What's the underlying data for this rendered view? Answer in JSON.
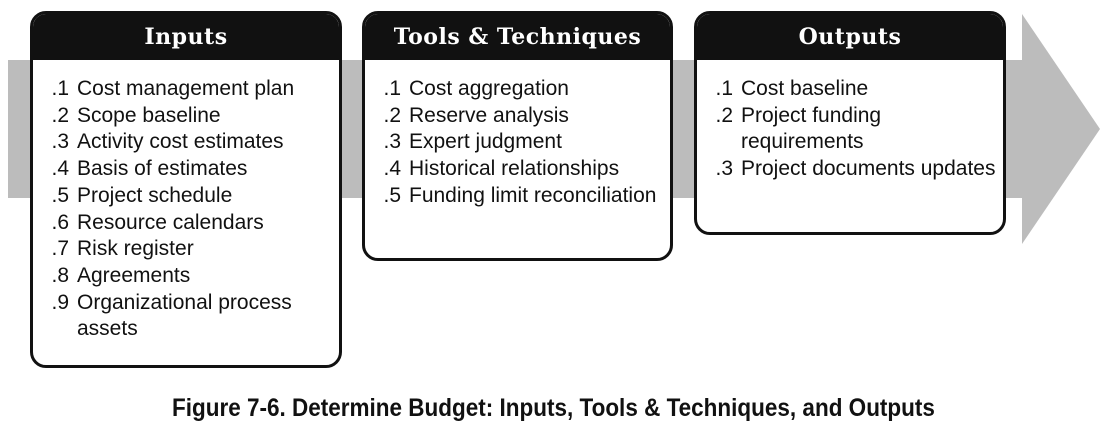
{
  "diagram": {
    "inputs": {
      "title": "Inputs",
      "items": [
        {
          "num": ".1",
          "text": "Cost management plan"
        },
        {
          "num": ".2",
          "text": "Scope baseline"
        },
        {
          "num": ".3",
          "text": "Activity cost estimates"
        },
        {
          "num": ".4",
          "text": "Basis of estimates"
        },
        {
          "num": ".5",
          "text": "Project schedule"
        },
        {
          "num": ".6",
          "text": "Resource calendars"
        },
        {
          "num": ".7",
          "text": "Risk register"
        },
        {
          "num": ".8",
          "text": "Agreements"
        },
        {
          "num": ".9",
          "text": "Organizational process assets"
        }
      ]
    },
    "tools": {
      "title": "Tools & Techniques",
      "items": [
        {
          "num": ".1",
          "text": "Cost aggregation"
        },
        {
          "num": ".2",
          "text": "Reserve analysis"
        },
        {
          "num": ".3",
          "text": "Expert judgment"
        },
        {
          "num": ".4",
          "text": "Historical relationships"
        },
        {
          "num": ".5",
          "text": "Funding limit reconciliation"
        }
      ]
    },
    "outputs": {
      "title": "Outputs",
      "items": [
        {
          "num": ".1",
          "text": "Cost baseline"
        },
        {
          "num": ".2",
          "text": "Project funding requirements"
        },
        {
          "num": ".3",
          "text": "Project documents updates"
        }
      ]
    }
  },
  "caption": "Figure 7-6. Determine Budget: Inputs, Tools & Techniques, and Outputs",
  "colors": {
    "arrow": "#bcbcbc",
    "header_bg": "#111111",
    "header_text": "#ffffff",
    "border": "#111111"
  }
}
